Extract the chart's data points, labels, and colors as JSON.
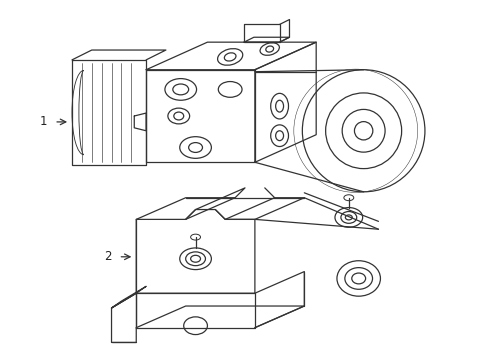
{
  "background_color": "#ffffff",
  "line_color": "#333333",
  "line_width": 0.9,
  "label_color": "#222222",
  "figsize": [
    4.9,
    3.6
  ],
  "dpi": 100,
  "label1_text": "1",
  "label2_text": "2"
}
